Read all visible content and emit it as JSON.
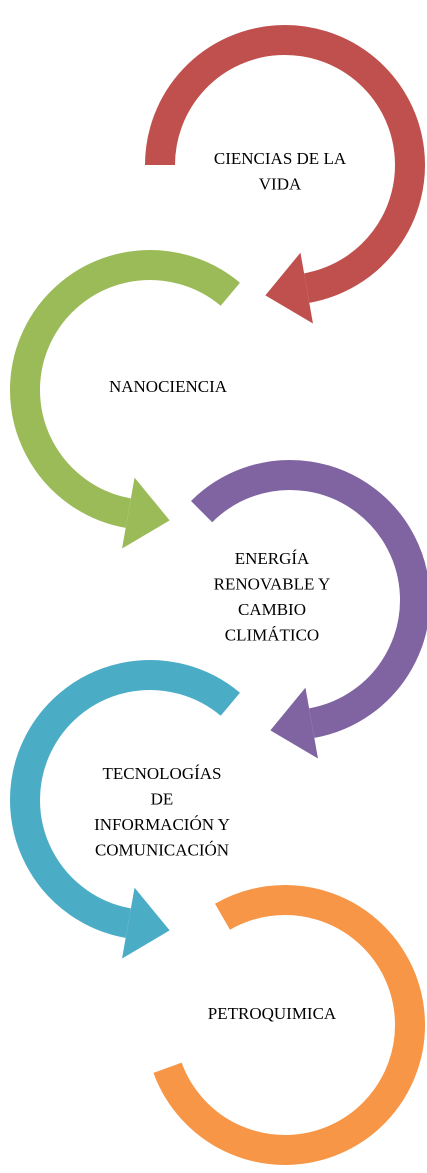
{
  "nodes": [
    {
      "lines": [
        "CIENCIAS DE LA",
        "VIDA"
      ]
    },
    {
      "lines": [
        "NANOCIENCIA"
      ]
    },
    {
      "lines": [
        "ENERGÍA",
        "RENOVABLE Y",
        "CAMBIO",
        "CLIMÁTICO"
      ]
    },
    {
      "lines": [
        "TECNOLOGÍAS",
        "DE",
        "INFORMACIÓN Y",
        "COMUNICACIÓN"
      ]
    },
    {
      "lines": [
        "PETROQUIMICA"
      ]
    }
  ]
}
